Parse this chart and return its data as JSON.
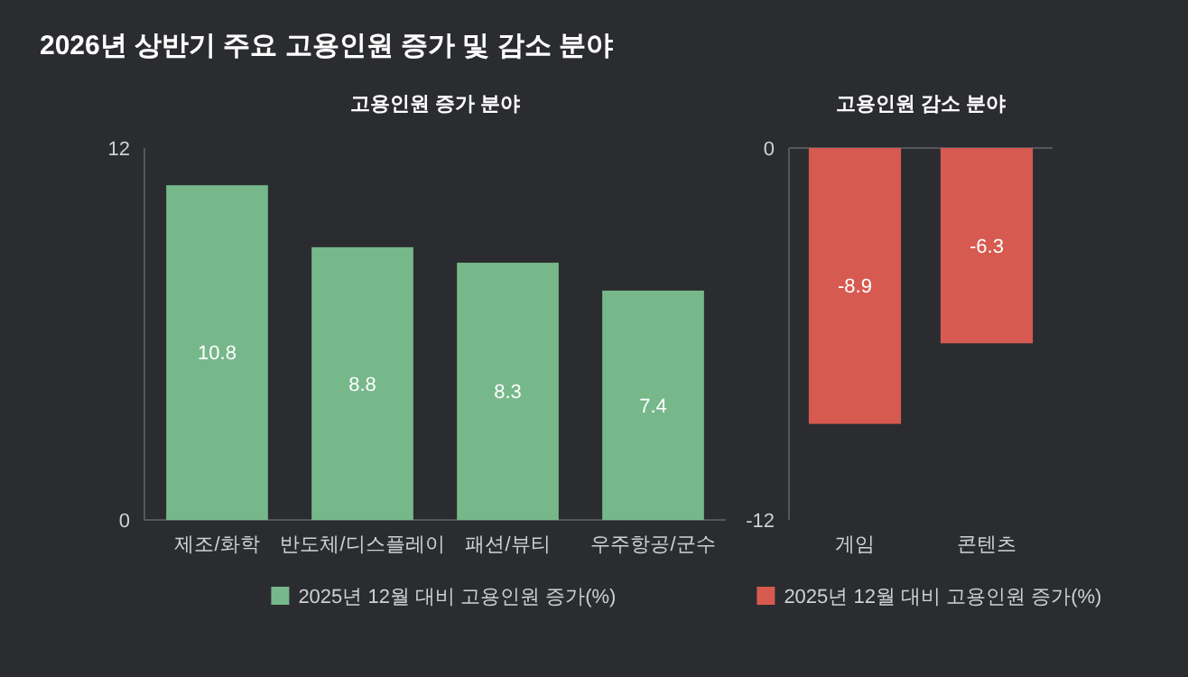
{
  "chart_data": [
    {
      "type": "bar",
      "title": "2026년 상반기 주요 고용인원 증가 및 감소 분야",
      "subtitle": "고용인원 증가 분야",
      "categories": [
        "제조/화학",
        "반도체/디스플레이",
        "패션/뷰티",
        "우주항공/군수"
      ],
      "series": [
        {
          "name": "2025년 12월 대비 고용인원 증가(%)",
          "color": "#76b88a",
          "values": [
            10.8,
            8.8,
            8.3,
            7.4
          ]
        }
      ],
      "ylim": [
        0,
        12
      ],
      "yticks": [
        0,
        12
      ],
      "legend": "bottom",
      "data_labels": true
    },
    {
      "type": "bar",
      "subtitle": "고용인원 감소 분야",
      "categories": [
        "게임",
        "콘텐츠"
      ],
      "series": [
        {
          "name": "2025년 12월 대비 고용인원 증가(%)",
          "color": "#d65a50",
          "values": [
            -8.9,
            -6.3
          ]
        }
      ],
      "ylim": [
        -12,
        0
      ],
      "yticks": [
        0,
        -12
      ],
      "legend": "bottom",
      "data_labels": true
    }
  ]
}
